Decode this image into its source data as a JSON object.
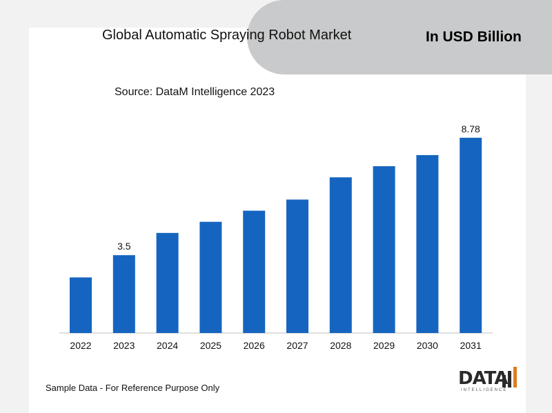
{
  "header": {
    "title": "Global Automatic Spraying Robot Market",
    "unit": "In USD Billion",
    "source": "Source: DataM Intelligence 2023"
  },
  "footer": {
    "note": "Sample Data - For Reference Purpose Only",
    "logo_text": "DATA",
    "logo_sub": "INTELLIGENCE"
  },
  "colors": {
    "bar": "#1565c0",
    "banner": "#c9cacb"
  },
  "chart_data": {
    "type": "bar",
    "categories": [
      "2022",
      "2023",
      "2024",
      "2025",
      "2026",
      "2027",
      "2028",
      "2029",
      "2030",
      "2031"
    ],
    "values": [
      2.5,
      3.5,
      4.5,
      5.0,
      5.5,
      6.0,
      7.0,
      7.5,
      8.0,
      8.78
    ],
    "data_labels": [
      "",
      "3.5",
      "",
      "",
      "",
      "",
      "",
      "",
      "",
      "8.78"
    ],
    "title": "Global Automatic Spraying Robot Market",
    "xlabel": "",
    "ylabel": "",
    "ylim": [
      0,
      9.3
    ],
    "grid": false,
    "legend": "none"
  }
}
